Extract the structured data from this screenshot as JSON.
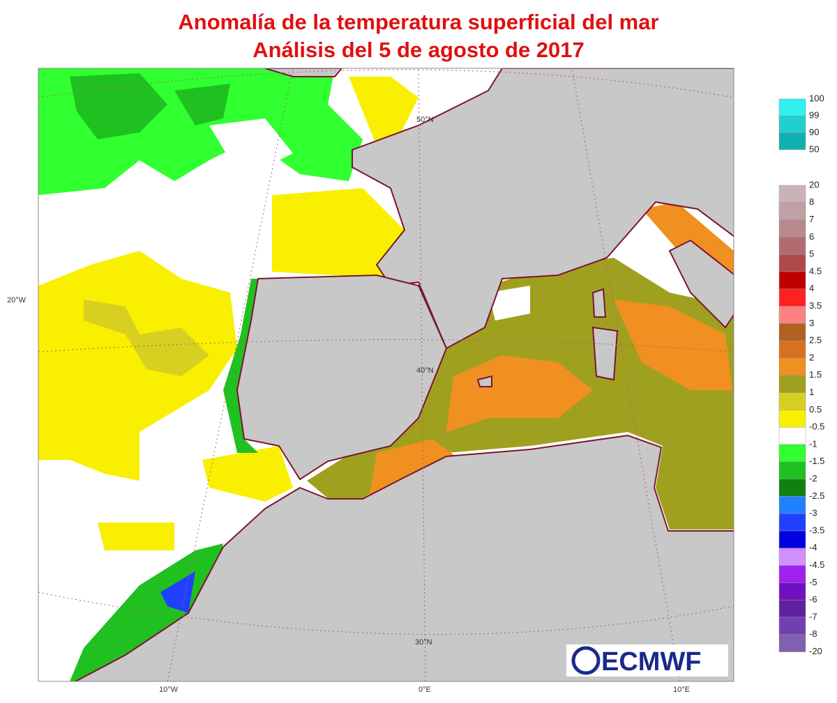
{
  "header": {
    "title": "Anomalía de la temperatura superficial del mar",
    "subtitle": "Análisis del 5 de agosto de 2017"
  },
  "map": {
    "latitude_labels": [
      "50°N",
      "40°N",
      "30°N"
    ],
    "longitude_labels": [
      "20°W",
      "10°W",
      "0°E",
      "10°E"
    ],
    "logo": "ECMWF"
  },
  "legend": {
    "upper": {
      "labels": [
        "100",
        "99",
        "90",
        "50"
      ],
      "colors": [
        "#30f0f0",
        "#20d0d0",
        "#10b0b0"
      ]
    },
    "lower": {
      "labels": [
        "20",
        "8",
        "7",
        "6",
        "5",
        "4.5",
        "4",
        "3.5",
        "3",
        "2.5",
        "2",
        "1.5",
        "1",
        "0.5",
        "-0.5",
        "-1",
        "-1.5",
        "-2",
        "-2.5",
        "-3",
        "-3.5",
        "-4",
        "-4.5",
        "-5",
        "-6",
        "-7",
        "-8",
        "-20"
      ],
      "colors": [
        "#c8b4b8",
        "#bfa0a4",
        "#b88a8e",
        "#b06c70",
        "#b04a4a",
        "#c00000",
        "#ff2020",
        "#ff8080",
        "#b06020",
        "#d87020",
        "#f09020",
        "#a0a020",
        "#d8d020",
        "#f8f000",
        "#ffffff",
        "#30ff30",
        "#20c020",
        "#108010",
        "#2080ff",
        "#2040ff",
        "#0000e0",
        "#d090ff",
        "#a020f0",
        "#7010c0",
        "#6020a0",
        "#7040b0",
        "#8060b0"
      ]
    }
  }
}
